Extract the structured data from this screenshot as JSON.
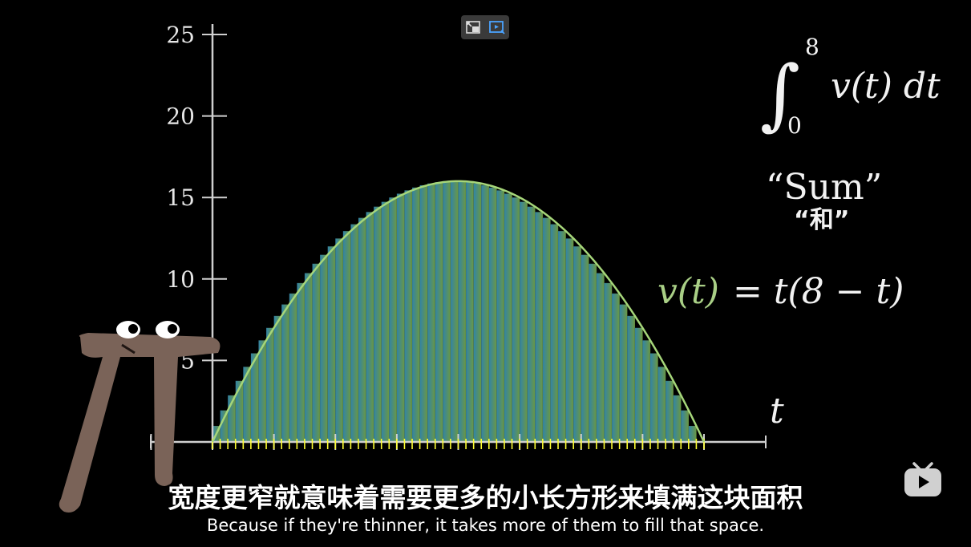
{
  "overlay": {
    "pip_icon": "picture-in-picture-icon",
    "cast_icon": "cast-screen-icon",
    "logo_icon": "bilibili-tv-logo-icon"
  },
  "math": {
    "integral_upper": "8",
    "integral_lower": "0",
    "integrand": "v(t) dt",
    "sum_label": "“Sum”",
    "sum_label_cn": "“和”",
    "function_lhs": "v(t)",
    "function_rhs": "= t(8 − t)",
    "t_axis_label": "t"
  },
  "subtitles": {
    "chinese": "宽度更窄就意味着需要更多的小长方形来填满这块面积",
    "english": "Because if they're thinner, it takes more of them to fill that space."
  },
  "colors": {
    "curve": "#a6d67a",
    "area_start": "#3a9bc4",
    "area_end": "#7fb34d",
    "function_label": "#a9cf86",
    "tick_marks": "#ffff33",
    "pi_creature": "#7a6358"
  },
  "chart_data": {
    "type": "area",
    "function": "v(t) = t(8 - t)",
    "xlim": [
      0,
      8
    ],
    "ylim": [
      0,
      25
    ],
    "y_ticks": [
      5,
      10,
      15,
      20,
      25
    ],
    "y_tick_labels": [
      "5",
      "10",
      "15",
      "20",
      "25"
    ],
    "xlabel": "t",
    "ylabel": "",
    "rectangles": {
      "count": 64,
      "dt": 0.125
    },
    "grid": false
  }
}
